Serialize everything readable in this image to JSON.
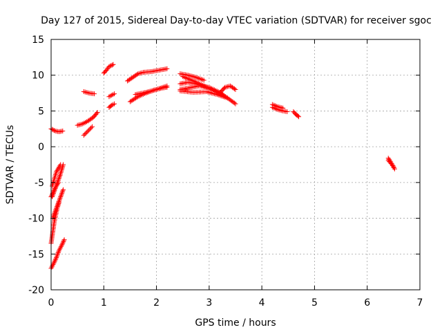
{
  "chart_data": {
    "type": "scatter",
    "title": "Day 127 of 2015, Sidereal Day-to-day VTEC variation (SDTVAR) for receiver sgoc",
    "xlabel": "GPS time / hours",
    "ylabel": "SDTVAR / TECUs",
    "xlim": [
      0,
      7
    ],
    "ylim": [
      -20,
      15
    ],
    "xticks": [
      "0",
      "1",
      "2",
      "3",
      "4",
      "5",
      "6",
      "7"
    ],
    "yticks": [
      "15",
      "10",
      "5",
      "0",
      "-5",
      "-10",
      "-15",
      "-20"
    ],
    "grid": true,
    "marker": "+",
    "marker_color": "#ff0000",
    "segments": [
      {
        "x": [
          0.0,
          0.08,
          0.15,
          0.22
        ],
        "y": [
          2.5,
          2.2,
          2.1,
          2.2
        ]
      },
      {
        "x": [
          0.0,
          0.05,
          0.1,
          0.15,
          0.2,
          0.25
        ],
        "y": [
          -17.0,
          -16.3,
          -15.5,
          -14.5,
          -13.8,
          -13.0
        ]
      },
      {
        "x": [
          0.0,
          0.03,
          0.06,
          0.09,
          0.12,
          0.15
        ],
        "y": [
          -13.5,
          -12.0,
          -10.5,
          -9.5,
          -8.5,
          -7.8
        ]
      },
      {
        "x": [
          0.03,
          0.08,
          0.13,
          0.18,
          0.23
        ],
        "y": [
          -10.0,
          -9.0,
          -8.0,
          -7.0,
          -6.0
        ]
      },
      {
        "x": [
          0.02,
          0.07,
          0.12,
          0.17,
          0.23
        ],
        "y": [
          -7.0,
          -6.0,
          -5.0,
          -4.0,
          -2.5
        ]
      },
      {
        "x": [
          0.02,
          0.06,
          0.1,
          0.14,
          0.18
        ],
        "y": [
          -5.5,
          -4.5,
          -3.5,
          -3.0,
          -2.5
        ]
      },
      {
        "x": [
          0.0,
          0.03,
          0.06,
          0.1,
          0.14
        ],
        "y": [
          -7.0,
          -6.5,
          -6.0,
          -5.5,
          -5.0
        ]
      },
      {
        "x": [
          0.5,
          0.6,
          0.7,
          0.8,
          0.88
        ],
        "y": [
          3.0,
          3.2,
          3.6,
          4.1,
          4.8
        ]
      },
      {
        "x": [
          0.62,
          0.7,
          0.78
        ],
        "y": [
          1.6,
          2.2,
          2.8
        ]
      },
      {
        "x": [
          0.62,
          0.72,
          0.82
        ],
        "y": [
          7.7,
          7.5,
          7.4
        ]
      },
      {
        "x": [
          1.0,
          1.05,
          1.1,
          1.18
        ],
        "y": [
          10.3,
          10.7,
          11.2,
          11.5
        ]
      },
      {
        "x": [
          1.1,
          1.15,
          1.2
        ],
        "y": [
          5.5,
          5.8,
          6.0
        ]
      },
      {
        "x": [
          1.1,
          1.15,
          1.2
        ],
        "y": [
          7.0,
          7.2,
          7.4
        ]
      },
      {
        "x": [
          1.45,
          1.55,
          1.65,
          1.75
        ],
        "y": [
          9.2,
          9.7,
          10.2,
          10.4
        ]
      },
      {
        "x": [
          1.75,
          1.9,
          2.05,
          2.2
        ],
        "y": [
          10.4,
          10.5,
          10.7,
          10.9
        ]
      },
      {
        "x": [
          1.5,
          1.65,
          1.8,
          1.95,
          2.1,
          2.2
        ],
        "y": [
          6.3,
          7.0,
          7.5,
          7.9,
          8.2,
          8.3
        ]
      },
      {
        "x": [
          1.6,
          1.8,
          2.0,
          2.2
        ],
        "y": [
          7.3,
          7.6,
          8.0,
          8.5
        ]
      },
      {
        "x": [
          2.45,
          2.6,
          2.75,
          2.9
        ],
        "y": [
          10.2,
          10.0,
          9.7,
          9.3
        ]
      },
      {
        "x": [
          2.45,
          2.6,
          2.75,
          2.9,
          3.0
        ],
        "y": [
          8.8,
          9.0,
          8.8,
          8.5,
          8.2
        ]
      },
      {
        "x": [
          2.45,
          2.6,
          2.8,
          3.0,
          3.2,
          3.35,
          3.5
        ],
        "y": [
          8.0,
          8.2,
          8.5,
          8.3,
          7.6,
          6.8,
          6.0
        ]
      },
      {
        "x": [
          2.45,
          2.7,
          2.95,
          3.15,
          3.35
        ],
        "y": [
          7.8,
          7.6,
          7.7,
          7.3,
          6.8
        ]
      },
      {
        "x": [
          2.5,
          2.7,
          2.9,
          3.1,
          3.3
        ],
        "y": [
          9.8,
          9.2,
          8.5,
          7.8,
          7.0
        ]
      },
      {
        "x": [
          3.2,
          3.3,
          3.4,
          3.5
        ],
        "y": [
          7.5,
          8.3,
          8.5,
          8.0
        ]
      },
      {
        "x": [
          4.2,
          4.3,
          4.4,
          4.48
        ],
        "y": [
          5.5,
          5.2,
          5.0,
          4.9
        ]
      },
      {
        "x": [
          4.2,
          4.3,
          4.4
        ],
        "y": [
          5.9,
          5.6,
          5.4
        ]
      },
      {
        "x": [
          4.6,
          4.65,
          4.7
        ],
        "y": [
          4.9,
          4.5,
          4.2
        ]
      },
      {
        "x": [
          6.4,
          6.45,
          6.5
        ],
        "y": [
          -1.6,
          -2.2,
          -2.8
        ]
      },
      {
        "x": [
          6.4,
          6.47,
          6.52
        ],
        "y": [
          -1.9,
          -2.5,
          -3.1
        ]
      }
    ]
  }
}
